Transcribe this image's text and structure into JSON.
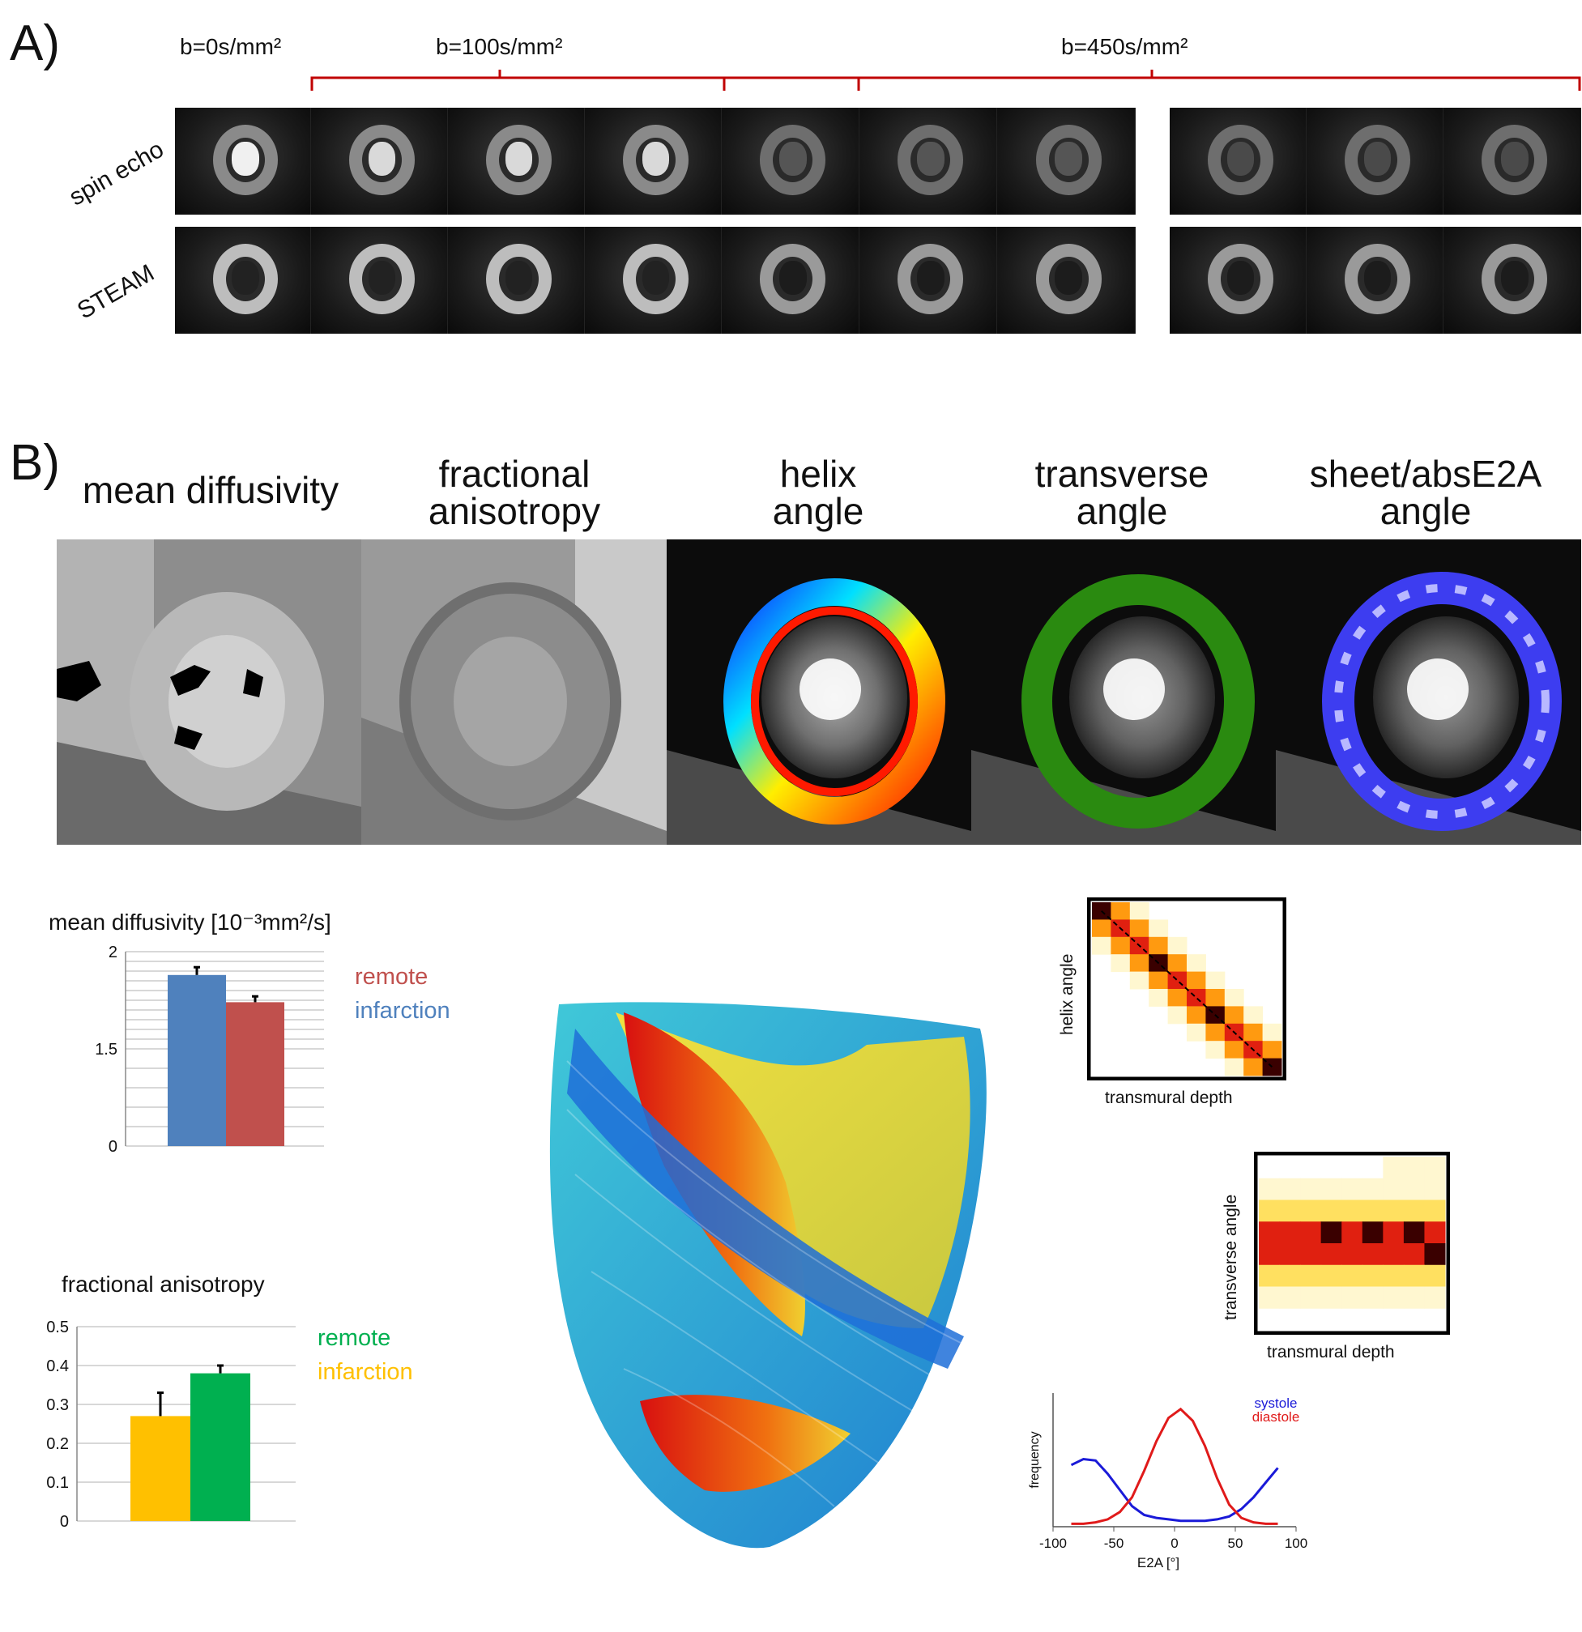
{
  "panel_a": {
    "label": "A)",
    "b_values": [
      "b=0s/mm²",
      "b=100s/mm²",
      "b=450s/mm²"
    ],
    "row_labels": [
      "spin echo",
      "STEAM"
    ]
  },
  "panel_b": {
    "label": "B)",
    "map_titles": [
      {
        "line1": "mean diffusivity",
        "line2": ""
      },
      {
        "line1": "fractional",
        "line2": "anisotropy"
      },
      {
        "line1": "helix",
        "line2": "angle"
      },
      {
        "line1": "transverse",
        "line2": "angle"
      },
      {
        "line1": "sheet/absE2A",
        "line2": "angle"
      }
    ]
  },
  "colors": {
    "remote_md": "#c0504d",
    "infarction_md": "#4f81bd",
    "remote_fa": "#00b050",
    "infarction_fa": "#ffc000",
    "systole": "#1a1ad8",
    "diastole": "#e01a1a",
    "bracket": "#c00000"
  },
  "md_chart": {
    "title": "mean diffusivity [10⁻³mm²/s]",
    "legend": [
      "remote",
      "infarction"
    ],
    "chart_data": {
      "type": "bar",
      "title": "mean diffusivity [10-3mm2/s]",
      "categories": [
        "infarction",
        "remote"
      ],
      "values": [
        1.88,
        1.74
      ],
      "errors": [
        0.04,
        0.03
      ],
      "ylim": [
        0,
        2
      ],
      "yticks": [
        "0",
        "1.5",
        "2"
      ]
    }
  },
  "fa_chart": {
    "title": "fractional anisotropy",
    "legend": [
      "remote",
      "infarction"
    ],
    "chart_data": {
      "type": "bar",
      "title": "fractional anisotropy",
      "categories": [
        "infarction",
        "remote"
      ],
      "values": [
        0.27,
        0.38
      ],
      "errors": [
        0.06,
        0.02
      ],
      "ylim": [
        0,
        0.5
      ],
      "yticks": [
        "0",
        "0.1",
        "0.2",
        "0.3",
        "0.4",
        "0.5"
      ]
    }
  },
  "heatmaps": {
    "helix": {
      "ylabel": "helix angle",
      "xlabel": "transmural depth"
    },
    "transverse": {
      "ylabel": "transverse angle",
      "xlabel": "transmural depth"
    }
  },
  "e2a_chart": {
    "ylabel": "frequency",
    "xlabel": "E2A [°]",
    "legend": [
      "systole",
      "diastole"
    ],
    "chart_data": {
      "type": "line",
      "xlim": [
        -100,
        100
      ],
      "xticks": [
        "-100",
        "-50",
        "0",
        "50",
        "100"
      ],
      "series": [
        {
          "name": "systole",
          "x": [
            -85,
            -75,
            -65,
            -55,
            -45,
            -35,
            -25,
            -15,
            -5,
            5,
            15,
            25,
            35,
            45,
            55,
            65,
            75,
            85
          ],
          "y": [
            0.42,
            0.46,
            0.45,
            0.36,
            0.25,
            0.14,
            0.08,
            0.06,
            0.05,
            0.04,
            0.04,
            0.04,
            0.05,
            0.07,
            0.12,
            0.2,
            0.3,
            0.4
          ]
        },
        {
          "name": "diastole",
          "x": [
            -85,
            -75,
            -65,
            -55,
            -45,
            -35,
            -25,
            -15,
            -5,
            5,
            15,
            25,
            35,
            45,
            55,
            65,
            75,
            85
          ],
          "y": [
            0.02,
            0.02,
            0.03,
            0.05,
            0.1,
            0.2,
            0.38,
            0.58,
            0.74,
            0.8,
            0.72,
            0.55,
            0.33,
            0.15,
            0.06,
            0.03,
            0.02,
            0.02
          ]
        }
      ]
    }
  }
}
